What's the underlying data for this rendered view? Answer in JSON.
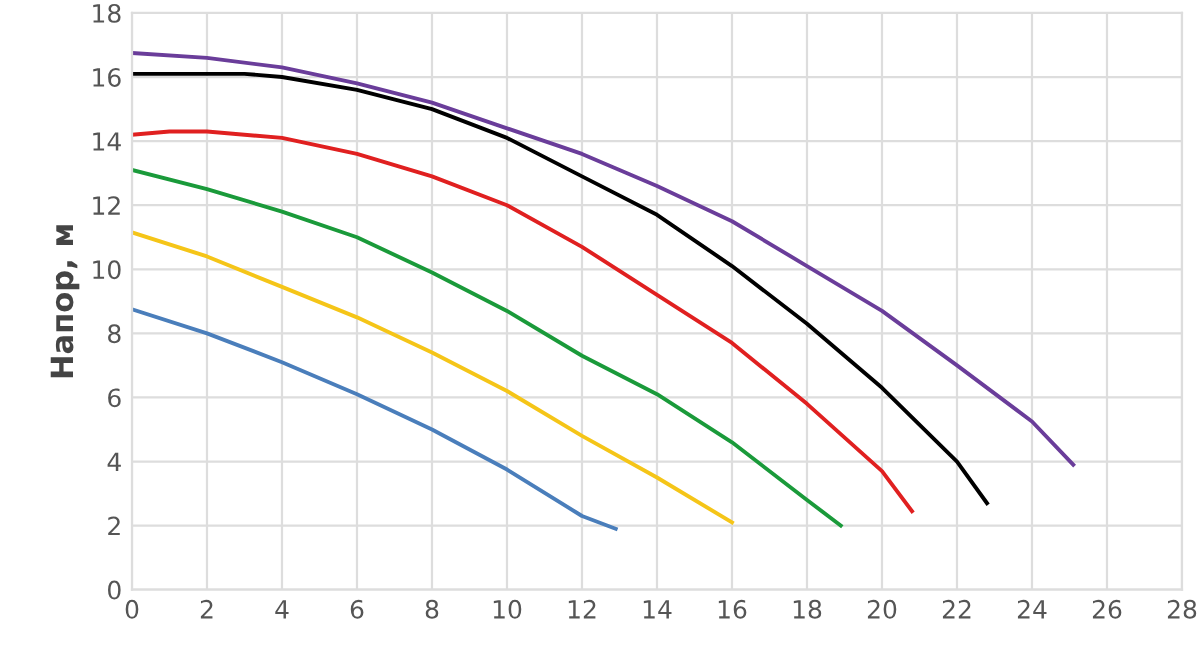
{
  "chart_data": {
    "type": "line",
    "ylabel": "Напор, м",
    "xlim": [
      0,
      28
    ],
    "ylim": [
      0,
      18
    ],
    "xticks": [
      0,
      2,
      4,
      6,
      8,
      10,
      12,
      14,
      16,
      18,
      20,
      22,
      24,
      26,
      28
    ],
    "yticks": [
      0,
      2,
      4,
      6,
      8,
      10,
      12,
      14,
      16,
      18
    ],
    "grid": true,
    "marker": "none",
    "line_style": "solid",
    "series": [
      {
        "color": "#4a7ebb",
        "x": [
          0,
          2,
          4,
          6,
          8,
          10,
          12,
          12.9
        ],
        "values": [
          8.75,
          8.0,
          7.1,
          6.1,
          5.0,
          3.75,
          2.3,
          1.9
        ]
      },
      {
        "color": "#f5c518",
        "x": [
          0,
          2,
          4,
          6,
          8,
          10,
          12,
          14,
          16
        ],
        "values": [
          11.15,
          10.4,
          9.45,
          8.5,
          7.4,
          6.2,
          4.8,
          3.5,
          2.1
        ]
      },
      {
        "color": "#1a9a3a",
        "x": [
          0,
          2,
          4,
          6,
          8,
          10,
          12,
          14,
          16,
          18,
          18.9
        ],
        "values": [
          13.1,
          12.5,
          11.8,
          11.0,
          9.9,
          8.7,
          7.3,
          6.1,
          4.6,
          2.8,
          2.0
        ]
      },
      {
        "color": "#e02020",
        "x": [
          0,
          1,
          2,
          4,
          6,
          8,
          10,
          12,
          14,
          16,
          18,
          20,
          20.8
        ],
        "values": [
          14.2,
          14.3,
          14.3,
          14.1,
          13.6,
          12.9,
          12.0,
          10.7,
          9.2,
          7.7,
          5.8,
          3.7,
          2.45
        ]
      },
      {
        "color": "#000000",
        "x": [
          0,
          3,
          4,
          6,
          8,
          10,
          12,
          14,
          16,
          18,
          20,
          22,
          22.8
        ],
        "values": [
          16.1,
          16.1,
          16.0,
          15.6,
          15.0,
          14.1,
          12.9,
          11.7,
          10.1,
          8.3,
          6.3,
          4.0,
          2.7
        ]
      },
      {
        "color": "#6a3d9a",
        "x": [
          0,
          2,
          4,
          6,
          8,
          10,
          12,
          14,
          16,
          18,
          20,
          22,
          24,
          25.1
        ],
        "values": [
          16.75,
          16.6,
          16.3,
          15.8,
          15.2,
          14.4,
          13.6,
          12.6,
          11.5,
          10.1,
          8.7,
          7.0,
          5.25,
          3.9
        ]
      }
    ]
  }
}
